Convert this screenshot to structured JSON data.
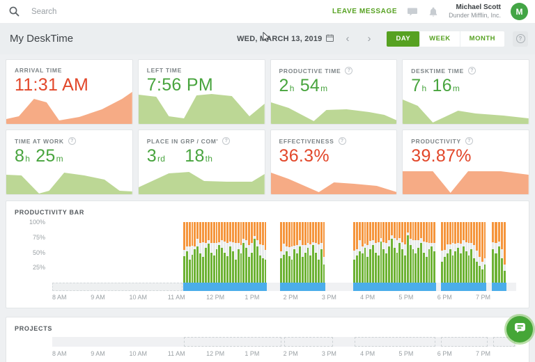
{
  "topbar": {
    "search_placeholder": "Search",
    "leave_message": "LEAVE MESSAGE",
    "user_name": "Michael Scott",
    "user_company": "Dunder Mifflin, Inc.",
    "avatar_letter": "M"
  },
  "header": {
    "title": "My DeskTime",
    "date": "WED, MARCH 13, 2019",
    "tabs": [
      {
        "label": "DAY",
        "active": true
      },
      {
        "label": "WEEK",
        "active": false
      },
      {
        "label": "MONTH",
        "active": false
      }
    ],
    "help_glyph": "?"
  },
  "colors": {
    "accent_green": "#56a121",
    "value_green": "#48a43e",
    "value_red": "#e2472a",
    "spark_green": "#bcd795",
    "spark_orange": "#f6ab85",
    "bar_green": "#6db233",
    "bar_gray": "#e8ebec",
    "bar_orange": "#f5953c",
    "work_blue": "#4badea"
  },
  "cards": [
    {
      "label": "ARRIVAL TIME",
      "help": false,
      "tone": "red",
      "value_parts": [
        {
          "t": "11:31 AM"
        }
      ]
    },
    {
      "label": "LEFT TIME",
      "help": false,
      "tone": "green",
      "value_parts": [
        {
          "t": "7:56 PM"
        }
      ]
    },
    {
      "label": "PRODUCTIVE TIME",
      "help": true,
      "tone": "green",
      "value_parts": [
        {
          "t": "2"
        },
        {
          "t": "h",
          "small": true
        },
        {
          "t": "54",
          "gap": "sm"
        },
        {
          "t": "m",
          "small": true
        }
      ]
    },
    {
      "label": "DESKTIME TIME",
      "help": true,
      "tone": "green",
      "value_parts": [
        {
          "t": "7"
        },
        {
          "t": "h",
          "small": true
        },
        {
          "t": "16",
          "gap": "sm"
        },
        {
          "t": "m",
          "small": true
        }
      ]
    },
    {
      "label": "TIME AT WORK",
      "help": true,
      "tone": "green",
      "value_parts": [
        {
          "t": "8"
        },
        {
          "t": "h",
          "small": true
        },
        {
          "t": "25",
          "gap": "sm"
        },
        {
          "t": "m",
          "small": true
        }
      ]
    },
    {
      "label": "PLACE IN GRP / COM'",
      "help": true,
      "tone": "green",
      "value_parts": [
        {
          "t": "3"
        },
        {
          "t": "rd",
          "small": true
        },
        {
          "t": "18",
          "gap": "lg"
        },
        {
          "t": "th",
          "small": true
        }
      ]
    },
    {
      "label": "EFFECTIVENESS",
      "help": true,
      "tone": "red",
      "value_parts": [
        {
          "t": "36.3%"
        }
      ]
    },
    {
      "label": "PRODUCTIVITY",
      "help": true,
      "tone": "red",
      "value_parts": [
        {
          "t": "39.87%"
        }
      ]
    }
  ],
  "productivity": {
    "title": "PRODUCTIVITY BAR"
  },
  "projects": {
    "title": "PROJECTS"
  },
  "chart_data": {
    "hours_axis": [
      {
        "t": 8,
        "label": "8 AM"
      },
      {
        "t": 9,
        "label": "9 AM"
      },
      {
        "t": 10,
        "label": "10 AM"
      },
      {
        "t": 11,
        "label": "11 AM"
      },
      {
        "t": 12,
        "label": "12 PM"
      },
      {
        "t": 13,
        "label": "1 PM"
      },
      {
        "t": 14,
        "label": "2 PM"
      },
      {
        "t": 15,
        "label": "3 PM"
      },
      {
        "t": 16,
        "label": "4 PM"
      },
      {
        "t": 17,
        "label": "5 PM"
      },
      {
        "t": 18,
        "label": "6 PM"
      },
      {
        "t": 19,
        "label": "7 PM"
      }
    ],
    "sparklines": [
      {
        "card": "ARRIVAL TIME",
        "type": "area",
        "color": "#f6ab85",
        "points": [
          [
            0,
            14
          ],
          [
            10,
            22
          ],
          [
            22,
            72
          ],
          [
            32,
            62
          ],
          [
            42,
            10
          ],
          [
            58,
            20
          ],
          [
            76,
            42
          ],
          [
            92,
            72
          ],
          [
            100,
            92
          ]
        ]
      },
      {
        "card": "LEFT TIME",
        "type": "area",
        "color": "#bcd795",
        "points": [
          [
            0,
            84
          ],
          [
            14,
            78
          ],
          [
            24,
            22
          ],
          [
            36,
            16
          ],
          [
            46,
            82
          ],
          [
            58,
            86
          ],
          [
            74,
            80
          ],
          [
            88,
            22
          ],
          [
            100,
            58
          ]
        ]
      },
      {
        "card": "PRODUCTIVE TIME",
        "type": "area",
        "color": "#bcd795",
        "points": [
          [
            0,
            62
          ],
          [
            14,
            46
          ],
          [
            34,
            8
          ],
          [
            44,
            40
          ],
          [
            60,
            42
          ],
          [
            78,
            34
          ],
          [
            90,
            26
          ],
          [
            100,
            10
          ]
        ]
      },
      {
        "card": "DESKTIME TIME",
        "type": "area",
        "color": "#bcd795",
        "points": [
          [
            0,
            70
          ],
          [
            12,
            52
          ],
          [
            24,
            4
          ],
          [
            44,
            38
          ],
          [
            58,
            30
          ],
          [
            80,
            24
          ],
          [
            100,
            16
          ]
        ]
      },
      {
        "card": "TIME AT WORK",
        "type": "area",
        "color": "#bcd795",
        "points": [
          [
            0,
            56
          ],
          [
            12,
            54
          ],
          [
            26,
            2
          ],
          [
            34,
            10
          ],
          [
            46,
            62
          ],
          [
            62,
            54
          ],
          [
            78,
            42
          ],
          [
            90,
            10
          ],
          [
            100,
            8
          ]
        ]
      },
      {
        "card": "PLACE IN GRP / COM'",
        "type": "area",
        "color": "#bcd795",
        "points": [
          [
            0,
            20
          ],
          [
            24,
            60
          ],
          [
            40,
            64
          ],
          [
            52,
            38
          ],
          [
            70,
            36
          ],
          [
            90,
            36
          ],
          [
            100,
            58
          ]
        ]
      },
      {
        "card": "EFFECTIVENESS",
        "type": "area",
        "color": "#f6ab85",
        "points": [
          [
            0,
            62
          ],
          [
            14,
            44
          ],
          [
            38,
            6
          ],
          [
            50,
            34
          ],
          [
            66,
            30
          ],
          [
            84,
            24
          ],
          [
            100,
            6
          ]
        ]
      },
      {
        "card": "PRODUCTIVITY",
        "type": "area",
        "color": "#f6ab85",
        "points": [
          [
            0,
            66
          ],
          [
            24,
            66
          ],
          [
            38,
            4
          ],
          [
            52,
            66
          ],
          [
            78,
            66
          ],
          [
            100,
            56
          ]
        ]
      }
    ],
    "productivity_bar": {
      "type": "bar",
      "title": "PRODUCTIVITY BAR",
      "ylim": [
        0,
        100
      ],
      "y_ticks": [
        100,
        75,
        50,
        25
      ],
      "y_tick_labels": [
        "100%",
        "75%",
        "50%",
        "25%"
      ],
      "time_range": [
        8,
        20.05
      ],
      "series_legend": [
        "productive",
        "neutral",
        "unproductive"
      ],
      "offline_segment": [
        8,
        11.38
      ],
      "sessions": [
        {
          "start": 11.4,
          "end": 13.58,
          "bars": [
            [
              44,
              10
            ],
            [
              52,
              8
            ],
            [
              38,
              22
            ],
            [
              46,
              15
            ],
            [
              55,
              5
            ],
            [
              60,
              12
            ],
            [
              48,
              18
            ],
            [
              42,
              25
            ],
            [
              58,
              8
            ],
            [
              64,
              6
            ],
            [
              50,
              15
            ],
            [
              45,
              20
            ],
            [
              55,
              10
            ],
            [
              62,
              5
            ],
            [
              58,
              12
            ],
            [
              50,
              18
            ],
            [
              44,
              22
            ],
            [
              60,
              8
            ],
            [
              52,
              15
            ],
            [
              38,
              28
            ],
            [
              55,
              10
            ],
            [
              48,
              14
            ],
            [
              66,
              6
            ],
            [
              58,
              12
            ],
            [
              42,
              20
            ],
            [
              50,
              15
            ],
            [
              72,
              5
            ],
            [
              60,
              10
            ],
            [
              45,
              18
            ],
            [
              40,
              22
            ],
            [
              38,
              16
            ]
          ]
        },
        {
          "start": 13.92,
          "end": 15.1,
          "bars": [
            [
              40,
              12
            ],
            [
              46,
              18
            ],
            [
              52,
              8
            ],
            [
              44,
              15
            ],
            [
              38,
              22
            ],
            [
              55,
              6
            ],
            [
              48,
              14
            ],
            [
              60,
              10
            ],
            [
              42,
              20
            ],
            [
              50,
              12
            ],
            [
              58,
              8
            ],
            [
              45,
              18
            ],
            [
              62,
              5
            ],
            [
              50,
              15
            ],
            [
              38,
              25
            ],
            [
              55,
              10
            ],
            [
              30,
              12
            ]
          ]
        },
        {
          "start": 15.82,
          "end": 17.97,
          "bars": [
            [
              38,
              15
            ],
            [
              45,
              10
            ],
            [
              52,
              18
            ],
            [
              48,
              12
            ],
            [
              58,
              6
            ],
            [
              42,
              20
            ],
            [
              55,
              14
            ],
            [
              62,
              8
            ],
            [
              50,
              15
            ],
            [
              45,
              22
            ],
            [
              68,
              5
            ],
            [
              55,
              12
            ],
            [
              48,
              18
            ],
            [
              60,
              10
            ],
            [
              72,
              6
            ],
            [
              58,
              15
            ],
            [
              50,
              20
            ],
            [
              65,
              8
            ],
            [
              55,
              12
            ],
            [
              45,
              18
            ],
            [
              78,
              5
            ],
            [
              62,
              10
            ],
            [
              55,
              15
            ],
            [
              48,
              22
            ],
            [
              58,
              12
            ],
            [
              65,
              8
            ],
            [
              50,
              18
            ],
            [
              42,
              25
            ],
            [
              55,
              10
            ],
            [
              60,
              6
            ],
            [
              52,
              14
            ]
          ]
        },
        {
          "start": 18.1,
          "end": 19.28,
          "bars": [
            [
              35,
              18
            ],
            [
              42,
              12
            ],
            [
              48,
              15
            ],
            [
              55,
              8
            ],
            [
              45,
              20
            ],
            [
              52,
              12
            ],
            [
              58,
              8
            ],
            [
              48,
              16
            ],
            [
              60,
              10
            ],
            [
              52,
              15
            ],
            [
              45,
              20
            ],
            [
              55,
              10
            ],
            [
              40,
              22
            ],
            [
              35,
              18
            ],
            [
              28,
              15
            ],
            [
              22,
              12
            ],
            [
              30,
              10
            ]
          ]
        },
        {
          "start": 19.42,
          "end": 19.8,
          "bars": [
            [
              55,
              12
            ],
            [
              48,
              18
            ],
            [
              60,
              8
            ],
            [
              40,
              15
            ],
            [
              20,
              10
            ]
          ]
        }
      ]
    },
    "projects_timeline": {
      "type": "timeline",
      "title": "PROJECTS",
      "time_range": [
        8,
        20.05
      ],
      "segments": [
        [
          11.42,
          13.95
        ],
        [
          14.02,
          15.3
        ],
        [
          15.85,
          17.95
        ],
        [
          18.1,
          19.3
        ],
        [
          19.45,
          20.02
        ]
      ]
    }
  }
}
